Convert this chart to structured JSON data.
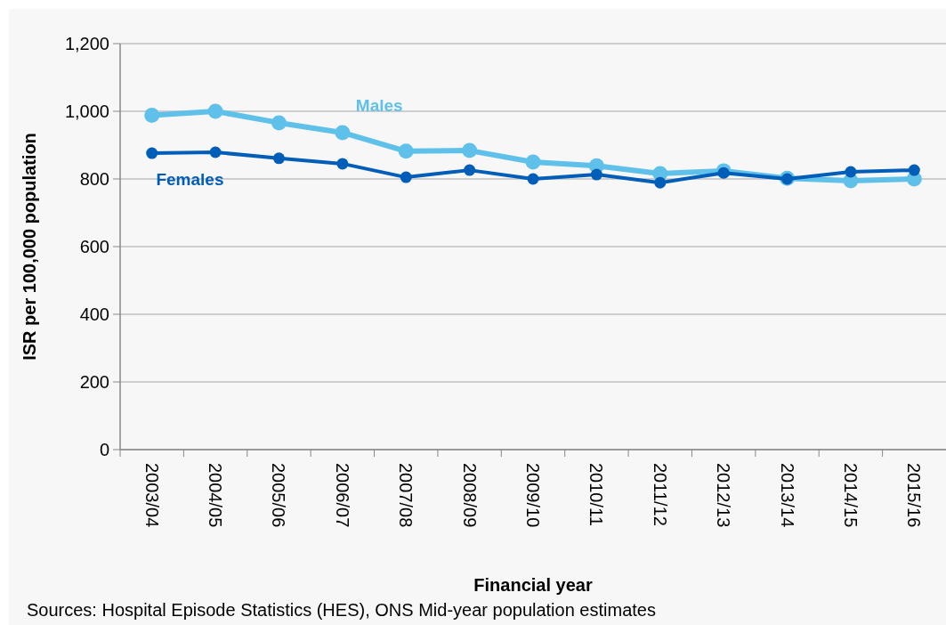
{
  "chart_data": {
    "type": "line",
    "xlabel": "Financial year",
    "ylabel": "ISR per 100,000 population",
    "categories": [
      "2003/04",
      "2004/05",
      "2005/06",
      "2006/07",
      "2007/08",
      "2008/09",
      "2009/10",
      "2010/11",
      "2011/12",
      "2012/13",
      "2013/14",
      "2014/15",
      "2015/16"
    ],
    "series": [
      {
        "name": "Males",
        "color": "#5fc1ea",
        "values": [
          988,
          1000,
          966,
          937,
          882,
          884,
          850,
          839,
          816,
          824,
          802,
          795,
          800
        ]
      },
      {
        "name": "Females",
        "color": "#005eb8",
        "values": [
          876,
          879,
          861,
          845,
          805,
          826,
          800,
          813,
          789,
          818,
          800,
          821,
          826
        ]
      }
    ],
    "ylim": [
      0,
      1200
    ],
    "yticks": [
      {
        "value": 0,
        "label": "0"
      },
      {
        "value": 200,
        "label": "200"
      },
      {
        "value": 400,
        "label": "400"
      },
      {
        "value": 600,
        "label": "600"
      },
      {
        "value": 800,
        "label": "800"
      },
      {
        "value": 1000,
        "label": "1,000"
      },
      {
        "value": 1200,
        "label": "1,200"
      }
    ],
    "grid": "y",
    "marker": "circle",
    "line_style": "solid",
    "annotations": [
      "Sources: Hospital Episode Statistics (HES), ONS Mid-year population estimates"
    ]
  }
}
